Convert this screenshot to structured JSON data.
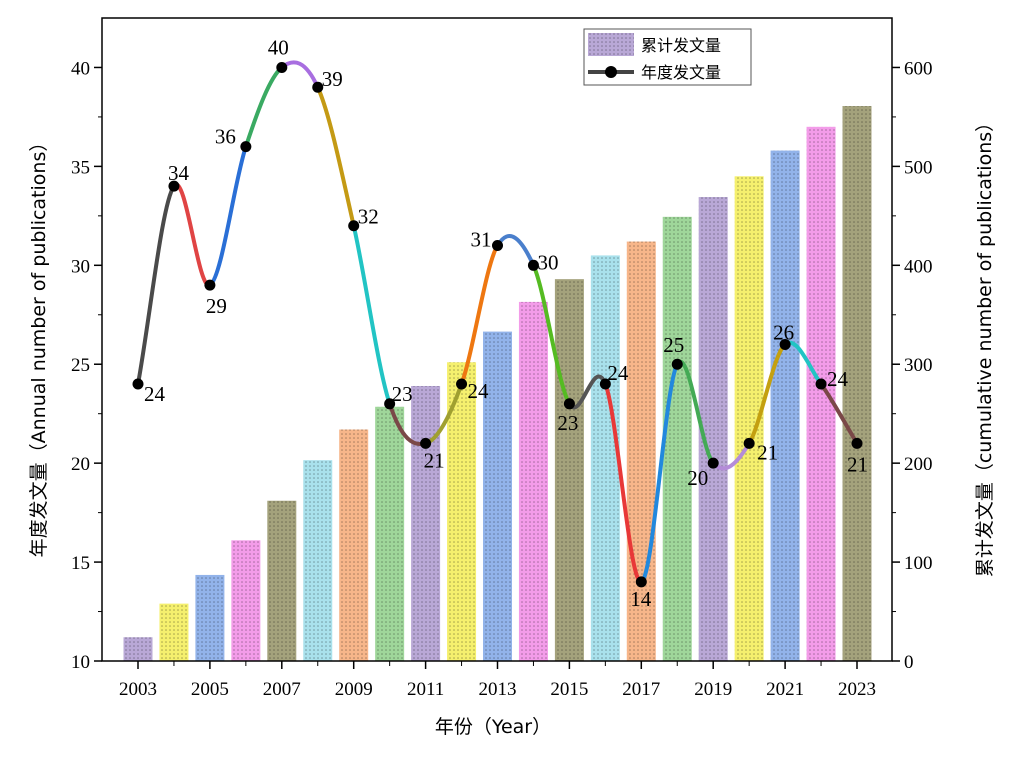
{
  "chart_data": {
    "type": "bar+line",
    "x": [
      2003,
      2004,
      2005,
      2006,
      2007,
      2008,
      2009,
      2010,
      2011,
      2012,
      2013,
      2014,
      2015,
      2016,
      2017,
      2018,
      2019,
      2020,
      2021,
      2022,
      2023
    ],
    "x_tick_labels": [
      "2003",
      "2005",
      "2007",
      "2009",
      "2011",
      "2013",
      "2015",
      "2017",
      "2019",
      "2021",
      "2023"
    ],
    "xlabel": "年份（Year）",
    "y_left": {
      "label": "年度发文量（Annual number of publications）",
      "range": [
        10,
        42.5
      ],
      "ticks": [
        "10",
        "15",
        "20",
        "25",
        "30",
        "35",
        "40"
      ]
    },
    "y_right": {
      "label": "累计发文量（cumulative number of publications）",
      "range": [
        0,
        650
      ],
      "ticks": [
        "0",
        "100",
        "200",
        "300",
        "400",
        "500",
        "600"
      ]
    },
    "series": [
      {
        "name": "累计发文量",
        "type": "bar",
        "axis": "right",
        "values": [
          24,
          58,
          87,
          122,
          162,
          203,
          234,
          257,
          278,
          302,
          333,
          363,
          386,
          410,
          424,
          449,
          469,
          490,
          516,
          540,
          561
        ],
        "colors": [
          "#b9a8d6",
          "#f5f06e",
          "#92b3ea",
          "#f39ce9",
          "#a4a27c",
          "#a9e1ec",
          "#f7b68a",
          "#9fd69a",
          "#b9a8d6",
          "#f5f06e",
          "#92b3ea",
          "#f39ce9",
          "#a4a27c",
          "#a9e1ec",
          "#f7b68a",
          "#9fd69a",
          "#b9a8d6",
          "#f5f06e",
          "#92b3ea",
          "#f39ce9",
          "#a4a27c"
        ]
      },
      {
        "name": "年度发文量",
        "type": "line",
        "axis": "left",
        "values": [
          24,
          34,
          29,
          36,
          40,
          39,
          32,
          23,
          21,
          24,
          31,
          30,
          23,
          24,
          14,
          25,
          20,
          21,
          26,
          24,
          21
        ],
        "labels": [
          "24",
          "34",
          "29",
          "36",
          "40",
          "39",
          "32",
          "23",
          "21",
          "24",
          "31",
          "30",
          "23",
          "24",
          "14",
          "25",
          "20",
          "21",
          "26",
          "24",
          "21"
        ],
        "segment_colors": [
          "#4a4a4a",
          "#e04444",
          "#2a6fd6",
          "#3aaa62",
          "#a86ee0",
          "#c49a14",
          "#22c4c4",
          "#7a4848",
          "#a0a030",
          "#ee7711",
          "#4a7fcc",
          "#55bb22",
          "#555555",
          "#e83838",
          "#2288dd",
          "#44aa55",
          "#b48cd8",
          "#c4a010",
          "#22c4c4",
          "#7a4848"
        ]
      }
    ],
    "legend": {
      "position": "top-right",
      "items": [
        {
          "label": "累计发文量",
          "swatch": "#b9a8d6"
        },
        {
          "label": "年度发文量",
          "swatch": "#444444"
        }
      ]
    }
  }
}
